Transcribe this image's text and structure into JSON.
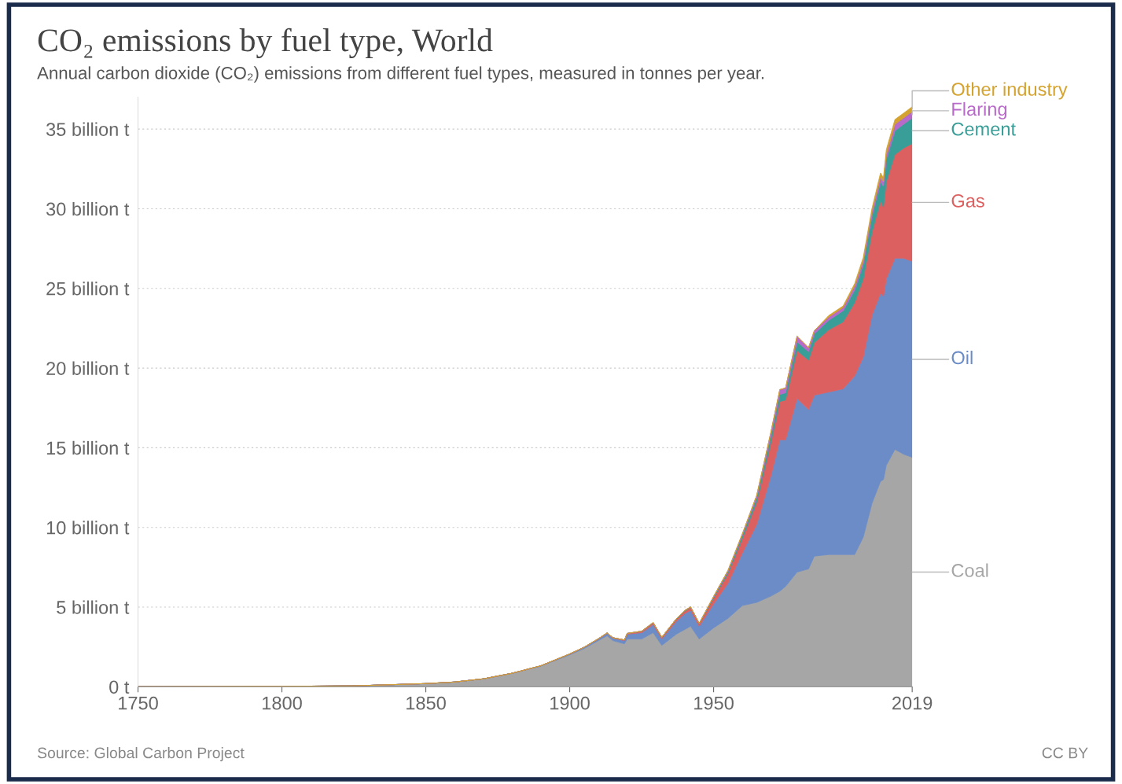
{
  "chart_data": {
    "type": "area",
    "stacked": true,
    "title": "CO₂ emissions by fuel type, World",
    "subtitle": "Annual carbon dioxide (CO₂) emissions from different fuel types, measured in tonnes per year.",
    "annotations": [
      "Source: Global Carbon Project",
      "CC BY"
    ],
    "x": [
      1750,
      1800,
      1825,
      1850,
      1860,
      1870,
      1880,
      1890,
      1900,
      1905,
      1910,
      1913,
      1915,
      1919,
      1920,
      1925,
      1929,
      1932,
      1937,
      1940,
      1942,
      1945,
      1950,
      1955,
      1960,
      1965,
      1970,
      1973,
      1975,
      1979,
      1983,
      1985,
      1990,
      1995,
      1999,
      2002,
      2005,
      2008,
      2009,
      2010,
      2013,
      2016,
      2019
    ],
    "series": [
      {
        "name": "Coal",
        "color": "#a6a6a6",
        "values": [
          0.01,
          0.03,
          0.06,
          0.2,
          0.3,
          0.5,
          0.85,
          1.3,
          2.0,
          2.4,
          2.9,
          3.2,
          2.9,
          2.7,
          3.0,
          3.0,
          3.4,
          2.6,
          3.3,
          3.6,
          3.8,
          3.0,
          3.7,
          4.3,
          5.1,
          5.3,
          5.7,
          6.0,
          6.3,
          7.2,
          7.4,
          8.2,
          8.3,
          8.3,
          8.3,
          9.4,
          11.5,
          12.9,
          13.0,
          13.9,
          14.9,
          14.6,
          14.4
        ]
      },
      {
        "name": "Oil",
        "color": "#6b8cc7",
        "values": [
          0,
          0,
          0,
          0,
          0,
          0,
          0,
          0.02,
          0.05,
          0.07,
          0.1,
          0.15,
          0.15,
          0.2,
          0.3,
          0.4,
          0.5,
          0.4,
          0.8,
          1.0,
          1.0,
          0.8,
          1.5,
          2.2,
          3.3,
          4.9,
          7.6,
          9.5,
          9.2,
          10.9,
          10.0,
          10.1,
          10.2,
          10.4,
          11.2,
          11.3,
          11.8,
          11.8,
          11.5,
          11.7,
          12.0,
          12.3,
          12.3
        ]
      },
      {
        "name": "Gas",
        "color": "#dd6060",
        "values": [
          0,
          0,
          0,
          0,
          0,
          0,
          0,
          0,
          0.01,
          0.01,
          0.02,
          0.03,
          0.03,
          0.04,
          0.05,
          0.07,
          0.1,
          0.09,
          0.12,
          0.15,
          0.17,
          0.15,
          0.35,
          0.6,
          0.9,
          1.4,
          2.1,
          2.4,
          2.5,
          3.0,
          3.1,
          3.3,
          3.9,
          4.2,
          4.6,
          4.9,
          5.2,
          5.8,
          5.6,
          6.1,
          6.5,
          6.9,
          7.4
        ]
      },
      {
        "name": "Cement",
        "color": "#3a9e98",
        "values": [
          0,
          0,
          0,
          0,
          0,
          0,
          0,
          0,
          0,
          0,
          0,
          0,
          0,
          0,
          0,
          0.02,
          0.03,
          0.02,
          0.04,
          0.04,
          0.04,
          0.03,
          0.07,
          0.12,
          0.2,
          0.27,
          0.4,
          0.45,
          0.45,
          0.55,
          0.53,
          0.55,
          0.6,
          0.7,
          0.8,
          0.9,
          1.0,
          1.2,
          1.3,
          1.4,
          1.5,
          1.5,
          1.6
        ]
      },
      {
        "name": "Flaring",
        "color": "#b86ac8",
        "values": [
          0,
          0,
          0,
          0,
          0,
          0,
          0,
          0,
          0,
          0,
          0,
          0,
          0,
          0,
          0,
          0,
          0,
          0,
          0,
          0,
          0,
          0,
          0.05,
          0.08,
          0.1,
          0.15,
          0.25,
          0.3,
          0.3,
          0.35,
          0.25,
          0.2,
          0.2,
          0.2,
          0.25,
          0.25,
          0.3,
          0.3,
          0.3,
          0.3,
          0.4,
          0.4,
          0.4
        ]
      },
      {
        "name": "Other industry",
        "color": "#d4a22e",
        "values": [
          0,
          0,
          0,
          0,
          0,
          0,
          0,
          0,
          0,
          0,
          0,
          0,
          0,
          0,
          0,
          0,
          0,
          0,
          0,
          0,
          0,
          0,
          0,
          0,
          0,
          0,
          0,
          0,
          0,
          0,
          0,
          0,
          0.1,
          0.1,
          0.15,
          0.2,
          0.2,
          0.25,
          0.25,
          0.3,
          0.3,
          0.3,
          0.3
        ]
      }
    ],
    "xlim": [
      1750,
      2019
    ],
    "xticks": [
      1750,
      1800,
      1850,
      1900,
      1950,
      2019
    ],
    "ylim": [
      0,
      37
    ],
    "yticks": [
      {
        "value": 0,
        "label": "0 t"
      },
      {
        "value": 5,
        "label": "5 billion t"
      },
      {
        "value": 10,
        "label": "10 billion t"
      },
      {
        "value": 15,
        "label": "15 billion t"
      },
      {
        "value": 20,
        "label": "20 billion t"
      },
      {
        "value": 25,
        "label": "25 billion t"
      },
      {
        "value": 30,
        "label": "30 billion t"
      },
      {
        "value": 35,
        "label": "35 billion t"
      }
    ],
    "grid": "y",
    "legend": false
  }
}
